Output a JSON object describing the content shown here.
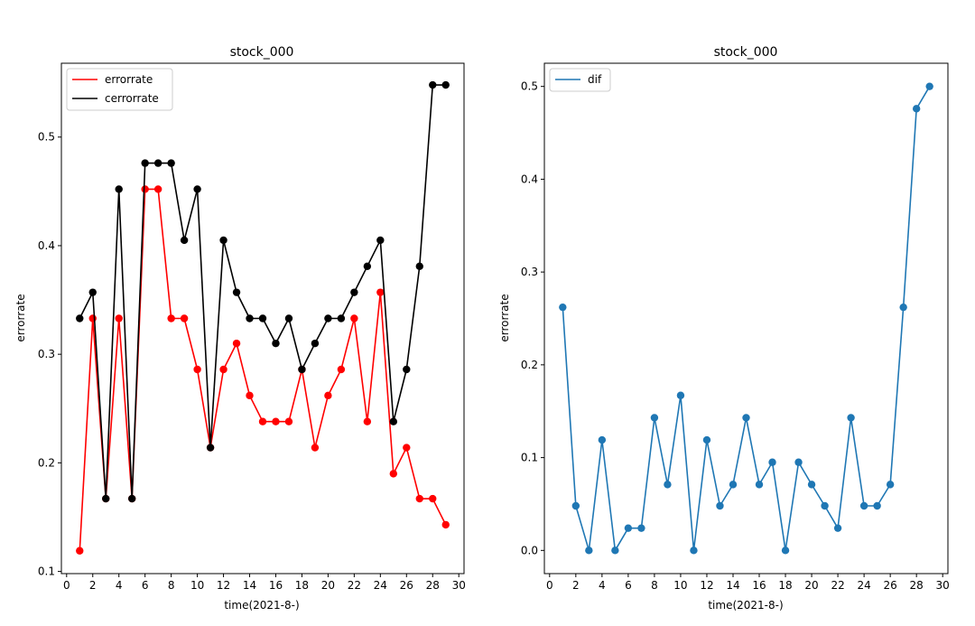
{
  "chart_data": [
    {
      "type": "line",
      "title": "stock_000",
      "xlabel": "time(2021-8-)",
      "ylabel": "errorrate",
      "xlim": [
        -0.4,
        30.4
      ],
      "ylim": [
        0.098,
        0.568
      ],
      "xticks": [
        0,
        2,
        4,
        6,
        8,
        10,
        12,
        14,
        16,
        18,
        20,
        22,
        24,
        26,
        28,
        30
      ],
      "yticks": [
        0.1,
        0.2,
        0.3,
        0.4,
        0.5
      ],
      "ytick_labels": [
        "0.1",
        "0.2",
        "0.3",
        "0.4",
        "0.5"
      ],
      "legend_position": "upper-left",
      "x": [
        1,
        2,
        3,
        4,
        5,
        6,
        7,
        8,
        9,
        10,
        11,
        12,
        13,
        14,
        15,
        16,
        17,
        18,
        19,
        20,
        21,
        22,
        23,
        24,
        25,
        26,
        27,
        28,
        29
      ],
      "series": [
        {
          "name": "errorrate",
          "color": "#ff0000",
          "marker": "circle",
          "values": [
            0.119,
            0.333,
            0.167,
            0.333,
            0.167,
            0.452,
            0.452,
            0.333,
            0.333,
            0.286,
            0.214,
            0.286,
            0.31,
            0.262,
            0.238,
            0.238,
            0.238,
            0.286,
            0.214,
            0.262,
            0.286,
            0.333,
            0.238,
            0.357,
            0.19,
            0.214,
            0.167,
            0.167,
            0.143
          ]
        },
        {
          "name": "cerrorrate",
          "color": "#000000",
          "marker": "circle",
          "values": [
            0.333,
            0.357,
            0.167,
            0.452,
            0.167,
            0.476,
            0.476,
            0.476,
            0.405,
            0.452,
            0.214,
            0.405,
            0.357,
            0.333,
            0.333,
            0.31,
            0.333,
            0.286,
            0.31,
            0.333,
            0.333,
            0.357,
            0.381,
            0.405,
            0.238,
            0.286,
            0.381,
            0.548,
            0.548
          ]
        }
      ]
    },
    {
      "type": "line",
      "title": "stock_000",
      "xlabel": "time(2021-8-)",
      "ylabel": "errorrate",
      "xlim": [
        -0.4,
        30.4
      ],
      "ylim": [
        -0.025,
        0.525
      ],
      "xticks": [
        0,
        2,
        4,
        6,
        8,
        10,
        12,
        14,
        16,
        18,
        20,
        22,
        24,
        26,
        28,
        30
      ],
      "yticks": [
        0.0,
        0.1,
        0.2,
        0.3,
        0.4,
        0.5
      ],
      "ytick_labels": [
        "0.0",
        "0.1",
        "0.2",
        "0.3",
        "0.4",
        "0.5"
      ],
      "legend_position": "upper-left",
      "x": [
        1,
        2,
        3,
        4,
        5,
        6,
        7,
        8,
        9,
        10,
        11,
        12,
        13,
        14,
        15,
        16,
        17,
        18,
        19,
        20,
        21,
        22,
        23,
        24,
        25,
        26,
        27,
        28,
        29
      ],
      "series": [
        {
          "name": "dif",
          "color": "#1f77b4",
          "marker": "circle",
          "values": [
            0.262,
            0.048,
            0.0,
            0.119,
            0.0,
            0.024,
            0.024,
            0.143,
            0.071,
            0.167,
            0.0,
            0.119,
            0.048,
            0.071,
            0.143,
            0.071,
            0.095,
            0.0,
            0.095,
            0.071,
            0.048,
            0.024,
            0.143,
            0.048,
            0.048,
            0.071,
            0.262,
            0.476,
            0.5
          ]
        }
      ]
    }
  ]
}
